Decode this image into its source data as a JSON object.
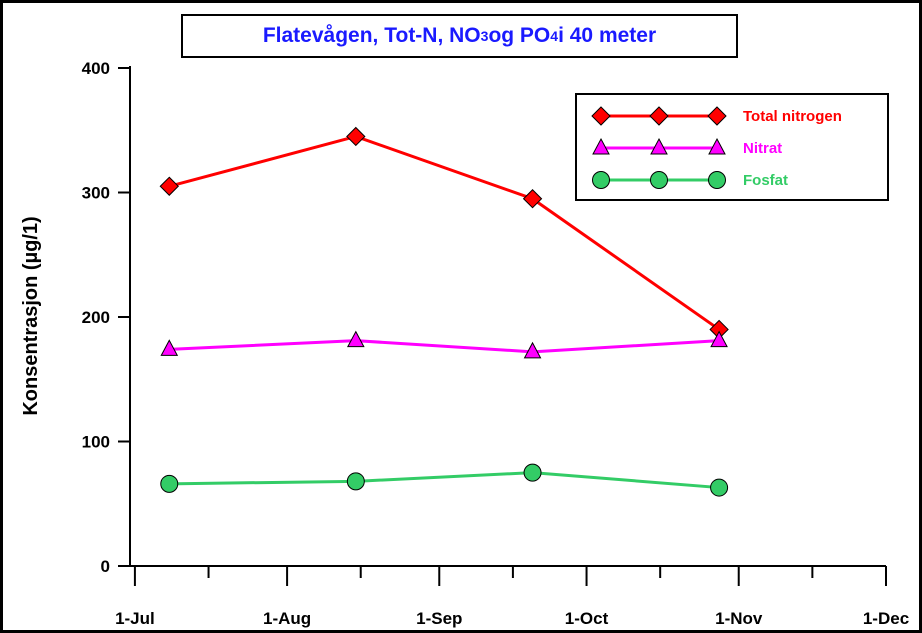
{
  "chart_data": {
    "type": "line",
    "title_parts": [
      "Flatevågen, Tot-N, NO",
      "3",
      " og PO",
      "4",
      " i 40 meter"
    ],
    "ylabel": "Konsentrasjon (µg/1)",
    "xlabel": "",
    "ylim": [
      0,
      400
    ],
    "yticks": [
      0,
      100,
      200,
      300,
      400
    ],
    "x_range": [
      "2000-06-30",
      "2000-12-01"
    ],
    "x_major_ticks": [
      {
        "date": "2000-07-01",
        "label": "1-Jul"
      },
      {
        "date": "2000-08-01",
        "label": "1-Aug"
      },
      {
        "date": "2000-09-01",
        "label": "1-Sep"
      },
      {
        "date": "2000-10-01",
        "label": "1-Oct"
      },
      {
        "date": "2000-11-01",
        "label": "1-Nov"
      },
      {
        "date": "2000-12-01",
        "label": "1-Dec"
      }
    ],
    "x_minor_ticks": [
      "2000-07-16",
      "2000-08-16",
      "2000-09-16",
      "2000-10-16",
      "2000-11-16"
    ],
    "legend_position": "top-right",
    "series": [
      {
        "name": "Total nitrogen",
        "color": "#ff0000",
        "marker": "diamond",
        "x": [
          "2000-07-08",
          "2000-08-15",
          "2000-09-20",
          "2000-10-28"
        ],
        "y": [
          305,
          345,
          295,
          190
        ]
      },
      {
        "name": "Nitrat",
        "color": "#ff00ff",
        "marker": "triangle",
        "x": [
          "2000-07-08",
          "2000-08-15",
          "2000-09-20",
          "2000-10-28"
        ],
        "y": [
          174,
          181,
          172,
          181
        ]
      },
      {
        "name": "Fosfat",
        "color": "#33cc66",
        "marker": "circle",
        "x": [
          "2000-07-08",
          "2000-08-15",
          "2000-09-20",
          "2000-10-28"
        ],
        "y": [
          66,
          68,
          75,
          63
        ]
      }
    ]
  }
}
